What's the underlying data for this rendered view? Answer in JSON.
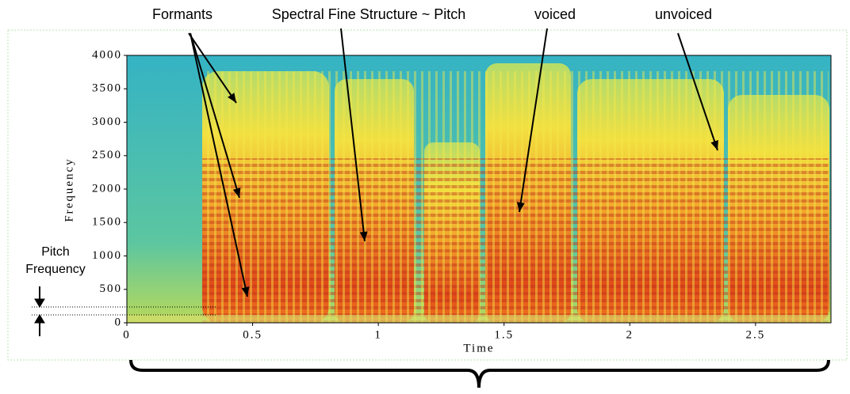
{
  "chart_data": {
    "type": "spectrogram",
    "x_label": "Time",
    "y_label": "Frequency",
    "xlim": [
      0,
      2.8
    ],
    "ylim": [
      0,
      4000
    ],
    "xticks": [
      0,
      0.5,
      1,
      1.5,
      2,
      2.5
    ],
    "yticks": [
      0,
      500,
      1000,
      1500,
      2000,
      2500,
      3000,
      3500,
      4000
    ],
    "annotations": [
      "Formants",
      "Spectral Fine Structure ~ Pitch",
      "voiced",
      "unvoiced"
    ],
    "pitch_label": "Pitch Frequency"
  }
}
